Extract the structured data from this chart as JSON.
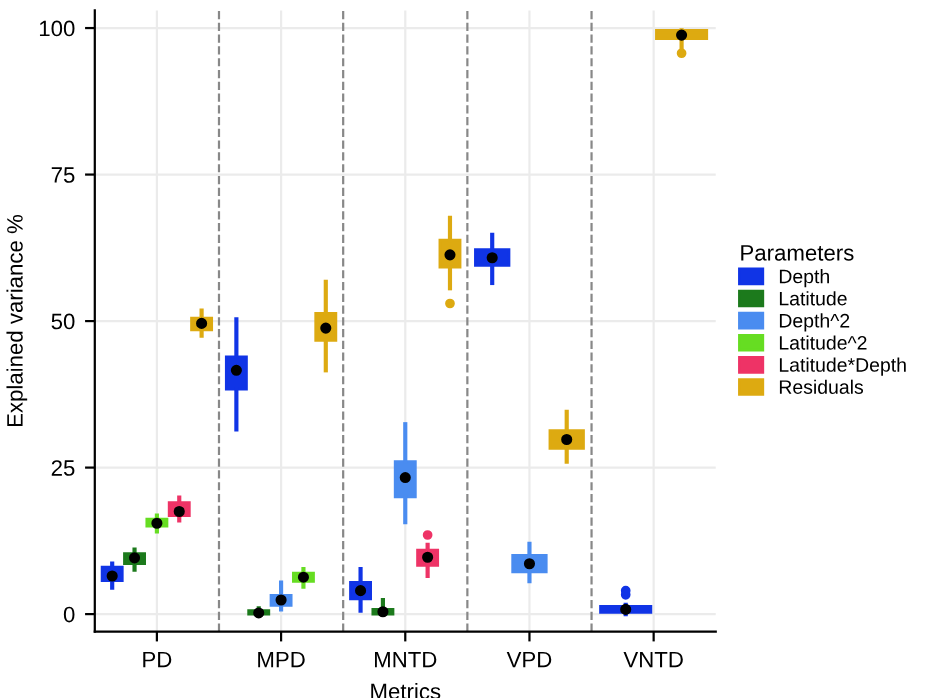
{
  "chart_data": {
    "type": "box",
    "xlabel": "Metrics",
    "ylabel": "Explained variance %",
    "legend_title": "Parameters",
    "legend": "right",
    "grid": true,
    "categories": [
      "PD",
      "MPD",
      "MNTD",
      "VPD",
      "VNTD"
    ],
    "ylim": [
      -3,
      103
    ],
    "yticks": [
      0,
      25,
      50,
      75,
      100
    ],
    "series": [
      {
        "name": "Depth",
        "color": "#1034e6",
        "boxes": [
          {
            "low": 4.5,
            "q1": 5.7,
            "median": 6.5,
            "q3": 8.0,
            "high": 8.6,
            "mean": 6.5
          },
          {
            "low": 31.5,
            "q1": 38.4,
            "median": 41.6,
            "q3": 43.9,
            "high": 50.3,
            "mean": 41.6
          },
          {
            "low": 0.6,
            "q1": 2.6,
            "median": 4.0,
            "q3": 5.4,
            "high": 7.7,
            "mean": 4.0
          },
          {
            "low": 56.5,
            "q1": 59.5,
            "median": 60.8,
            "q3": 62.2,
            "high": 64.7,
            "mean": 60.8
          },
          {
            "low": 0,
            "q1": 0.3,
            "median": 0.8,
            "q3": 1.3,
            "high": 1.6,
            "mean": 0.8,
            "outliers": [
              3.3,
              4.0
            ]
          }
        ]
      },
      {
        "name": "Latitude",
        "color": "#1c7a1c",
        "boxes": [
          {
            "low": 7.6,
            "q1": 8.6,
            "median": 9.6,
            "q3": 10.3,
            "high": 11.0,
            "mean": 9.6
          },
          {
            "low": 0,
            "q1": 0,
            "median": 0.2,
            "q3": 0.6,
            "high": 1.0,
            "mean": 0.2
          },
          {
            "low": 0,
            "q1": 0,
            "median": 0.4,
            "q3": 0.8,
            "high": 2.4,
            "mean": 0.4
          },
          null,
          null
        ]
      },
      {
        "name": "Depth^2",
        "color": "#4a8cf0",
        "boxes": [
          null,
          {
            "low": 0.8,
            "q1": 1.5,
            "median": 2.4,
            "q3": 3.2,
            "high": 5.4,
            "mean": 2.4
          },
          {
            "low": 15.7,
            "q1": 20.0,
            "median": 23.3,
            "q3": 26.0,
            "high": 32.4,
            "mean": 23.3
          },
          {
            "low": 5.6,
            "q1": 7.2,
            "median": 8.6,
            "q3": 10.0,
            "high": 12.0,
            "mean": 8.6
          },
          null
        ]
      },
      {
        "name": "Latitude^2",
        "color": "#66dd22",
        "boxes": [
          {
            "low": 14.1,
            "q1": 15.0,
            "median": 15.5,
            "q3": 16.2,
            "high": 16.8,
            "mean": 15.5
          },
          {
            "low": 4.7,
            "q1": 5.6,
            "median": 6.3,
            "q3": 7.0,
            "high": 7.7,
            "mean": 6.3
          },
          null,
          null,
          null
        ]
      },
      {
        "name": "Latitude*Depth",
        "color": "#ee3366",
        "boxes": [
          {
            "low": 16.0,
            "q1": 16.8,
            "median": 17.5,
            "q3": 19.0,
            "high": 19.9,
            "mean": 17.5
          },
          null,
          {
            "low": 6.5,
            "q1": 8.3,
            "median": 9.7,
            "q3": 10.9,
            "high": 11.8,
            "mean": 9.7,
            "outliers": [
              13.5
            ]
          },
          null,
          null
        ]
      },
      {
        "name": "Residuals",
        "color": "#ddaa11",
        "boxes": [
          {
            "low": 47.5,
            "q1": 48.5,
            "median": 49.6,
            "q3": 50.5,
            "high": 51.8,
            "mean": 49.6
          },
          {
            "low": 41.6,
            "q1": 46.7,
            "median": 48.8,
            "q3": 51.3,
            "high": 56.7,
            "mean": 48.8
          },
          {
            "low": 55.6,
            "q1": 59.2,
            "median": 61.3,
            "q3": 63.8,
            "high": 67.6,
            "mean": 61.3,
            "outliers": [
              53.0
            ]
          },
          {
            "low": 26.0,
            "q1": 28.3,
            "median": 29.8,
            "q3": 31.3,
            "high": 34.5,
            "mean": 29.8
          },
          {
            "low": 96.8,
            "q1": 98.2,
            "median": 98.8,
            "q3": 99.6,
            "high": 99.6,
            "mean": 98.8,
            "outliers": [
              95.7
            ]
          }
        ]
      }
    ]
  }
}
